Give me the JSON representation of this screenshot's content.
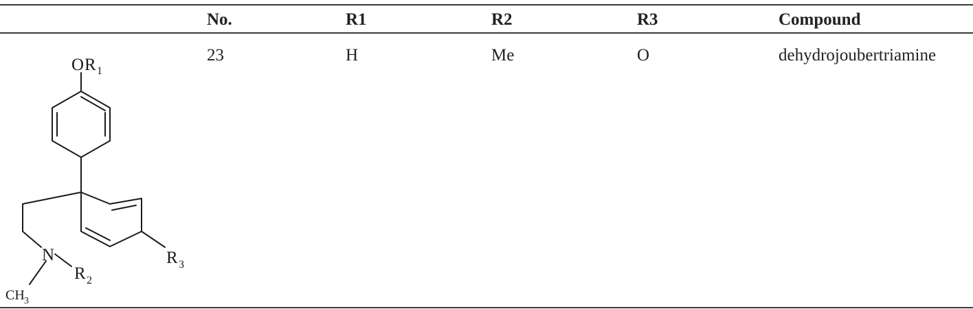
{
  "table": {
    "headers": {
      "structure": "",
      "no": "No.",
      "r1": "R1",
      "r2": "R2",
      "r3": "R3",
      "compound": "Compound"
    },
    "rows": [
      {
        "no": "23",
        "r1": "H",
        "r2": "Me",
        "r3": "O",
        "compound": "dehydrojoubertriamine"
      }
    ]
  },
  "structure_labels": {
    "or1_o": "O",
    "or1_r": "R",
    "or1_sub": "1",
    "n": "N",
    "r2_r": "R",
    "r2_sub": "2",
    "r3_r": "R",
    "r3_sub": "3",
    "ch3_ch": "CH",
    "ch3_sub": "3"
  }
}
